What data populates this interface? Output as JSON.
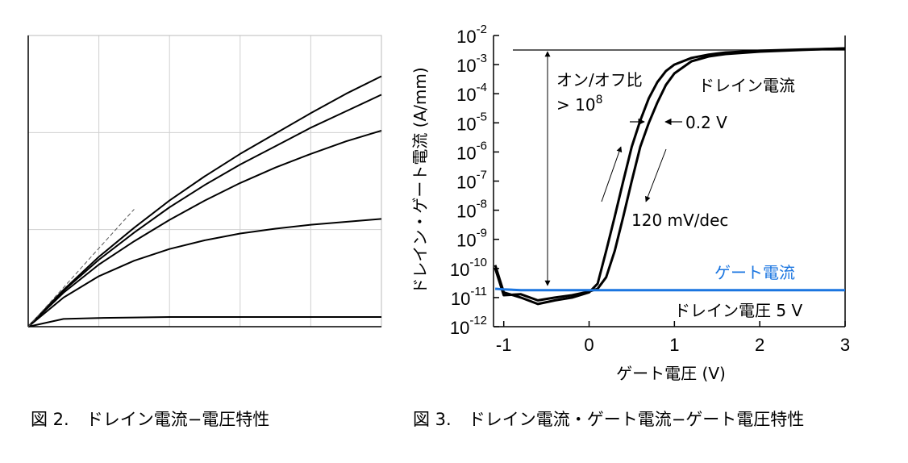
{
  "chart_data": [
    {
      "type": "line",
      "caption": "図 2.　ドレイン電流−電圧特性",
      "x": [
        0,
        0.5,
        1,
        1.5,
        2,
        2.5,
        3,
        3.5,
        4,
        4.5,
        5
      ],
      "xlim": [
        0,
        5
      ],
      "ylim": [
        0,
        3
      ],
      "xticks": [
        0,
        1,
        2,
        3,
        4,
        5
      ],
      "yticks": [
        0,
        1,
        2,
        3
      ],
      "grid": true,
      "show_tick_labels": false,
      "series": [
        {
          "color": "#000000",
          "values": [
            0,
            0.38,
            0.72,
            1.02,
            1.3,
            1.55,
            1.78,
            1.99,
            2.2,
            2.4,
            2.58
          ]
        },
        {
          "color": "#000000",
          "values": [
            0,
            0.37,
            0.69,
            0.97,
            1.23,
            1.46,
            1.67,
            1.86,
            2.05,
            2.22,
            2.39
          ]
        },
        {
          "color": "#000000",
          "values": [
            0,
            0.35,
            0.64,
            0.88,
            1.1,
            1.3,
            1.48,
            1.64,
            1.78,
            1.91,
            2.02
          ]
        },
        {
          "color": "#000000",
          "values": [
            0,
            0.3,
            0.52,
            0.68,
            0.8,
            0.89,
            0.96,
            1.01,
            1.05,
            1.08,
            1.11
          ]
        },
        {
          "color": "#000000",
          "values": [
            0,
            0.08,
            0.09,
            0.095,
            0.1,
            0.1,
            0.1,
            0.1,
            0.1,
            0.1,
            0.1
          ]
        },
        {
          "color": "#555555",
          "dashed": true,
          "values": [
            0,
            0.404,
            0.808,
            1.21,
            null,
            null,
            null,
            null,
            null,
            null,
            null
          ]
        }
      ]
    },
    {
      "type": "line",
      "caption": "図 3.　ドレイン電流・ゲート電流−ゲート電圧特性",
      "x_label": "ゲート電圧 (V)",
      "y_label": "ドレイン・ゲート電流 (A/mm)",
      "log_y": true,
      "x": [
        -1.1,
        -1,
        -0.8,
        -0.6,
        -0.4,
        -0.2,
        0,
        0.1,
        0.2,
        0.3,
        0.4,
        0.5,
        0.6,
        0.7,
        0.8,
        0.9,
        1,
        1.2,
        1.4,
        1.6,
        2,
        2.5,
        3
      ],
      "xlim": [
        -1.12,
        3
      ],
      "ylim": [
        1e-12,
        0.01
      ],
      "xticks": [
        -1,
        0,
        1,
        2,
        3
      ],
      "yticks": [
        {
          "value": 1e-12,
          "label": "10",
          "exponent": "-12"
        },
        {
          "value": 1e-11,
          "label": "10",
          "exponent": "-11"
        },
        {
          "value": 1e-10,
          "label": "10",
          "exponent": "-10"
        },
        {
          "value": 1e-09,
          "label": "10",
          "exponent": "-9"
        },
        {
          "value": 1e-08,
          "label": "10",
          "exponent": "-8"
        },
        {
          "value": 1e-07,
          "label": "10",
          "exponent": "-7"
        },
        {
          "value": 1e-06,
          "label": "10",
          "exponent": "-6"
        },
        {
          "value": 1e-05,
          "label": "10",
          "exponent": "-5"
        },
        {
          "value": 0.0001,
          "label": "10",
          "exponent": "-4"
        },
        {
          "value": 0.001,
          "label": "10",
          "exponent": "-3"
        },
        {
          "value": 0.01,
          "label": "10",
          "exponent": "-2"
        }
      ],
      "series": [
        {
          "color": "#000000",
          "values": [
            1.3e-10,
            1.5e-11,
            1e-11,
            6e-12,
            8e-12,
            1e-11,
            1.5e-11,
            3e-11,
            4e-10,
            6e-09,
            1e-07,
            1.5e-06,
            1.2e-05,
            7e-05,
            0.00025,
            0.0006,
            0.001,
            0.0017,
            0.0022,
            0.0026,
            0.003,
            0.0033,
            0.0036
          ]
        },
        {
          "color": "#000000",
          "values": [
            1e-10,
            1.2e-11,
            1.3e-11,
            8e-12,
            1e-11,
            1.2e-11,
            1.6e-11,
            2e-11,
            5e-11,
            4e-10,
            6e-09,
            1e-07,
            1.5e-06,
            1e-05,
            5e-05,
            0.0002,
            0.0005,
            0.0013,
            0.0019,
            0.0023,
            0.0028,
            0.0032,
            0.0036
          ]
        },
        {
          "color": "#1a75e0",
          "values": [
            2e-11,
            1.9e-11,
            1.8e-11,
            1.8e-11,
            1.8e-11,
            1.8e-11,
            1.8e-11,
            1.8e-11,
            1.8e-11,
            1.8e-11,
            1.8e-11,
            1.8e-11,
            1.8e-11,
            1.8e-11,
            1.8e-11,
            1.8e-11,
            1.8e-11,
            1.8e-11,
            1.8e-11,
            1.8e-11,
            1.8e-11,
            1.8e-11,
            1.8e-11
          ]
        }
      ],
      "annotations": {
        "on_off_ratio": "オン/オフ比",
        "ratio_value": "> 10",
        "ratio_exponent": "8",
        "drain_current": "ドレイン電流",
        "shift": "0.2 V",
        "slope": "120 mV/dec",
        "gate_current": "ゲート電流",
        "drain_voltage": "ドレイン電圧 5 V"
      }
    }
  ]
}
